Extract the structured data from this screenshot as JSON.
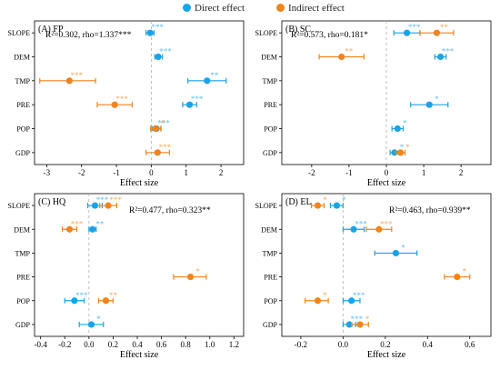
{
  "legend": {
    "direct": "Direct effect",
    "indirect": "Indirect effect"
  },
  "colors": {
    "direct": "#1aa3e8",
    "indirect": "#f2841d",
    "zero_line": "#b0b0b0",
    "axis": "#000000"
  },
  "chart_data": [
    {
      "type": "scatter",
      "title": "(A) FP",
      "annotation": "R²=0.302, rho=1.337***",
      "xlabel": "Effect size",
      "xlim": [
        -3.35,
        2.65
      ],
      "xticks": [
        -3,
        -2,
        -1,
        0,
        1,
        2
      ],
      "xtick_labels": [
        "-3",
        "-2",
        "-1",
        "0",
        "1",
        "2"
      ],
      "categories": [
        "SLOPE",
        "DEM",
        "TMP",
        "PRE",
        "POP",
        "GDP"
      ],
      "series": [
        {
          "name": "Direct effect",
          "points": [
            {
              "category": "SLOPE",
              "value": -0.03,
              "lo": -0.15,
              "hi": 0.08,
              "sig": "***"
            },
            {
              "category": "DEM",
              "value": 0.2,
              "lo": 0.1,
              "hi": 0.32,
              "sig": "***"
            },
            {
              "category": "TMP",
              "value": 1.6,
              "lo": 1.05,
              "hi": 2.15,
              "sig": "**"
            },
            {
              "category": "PRE",
              "value": 1.1,
              "lo": 0.9,
              "hi": 1.3,
              "sig": "***"
            },
            {
              "category": "POP",
              "value": 0.15,
              "lo": 0.02,
              "hi": 0.28,
              "sig": "***"
            },
            {
              "category": "GDP",
              "value": null,
              "lo": null,
              "hi": null,
              "sig": ""
            }
          ]
        },
        {
          "name": "Indirect effect",
          "points": [
            {
              "category": "SLOPE",
              "value": null,
              "lo": null,
              "hi": null,
              "sig": ""
            },
            {
              "category": "DEM",
              "value": null,
              "lo": null,
              "hi": null,
              "sig": ""
            },
            {
              "category": "TMP",
              "value": -2.35,
              "lo": -3.2,
              "hi": -1.6,
              "sig": "***"
            },
            {
              "category": "PRE",
              "value": -1.05,
              "lo": -1.55,
              "hi": -0.55,
              "sig": "***"
            },
            {
              "category": "POP",
              "value": 0.12,
              "lo": -0.02,
              "hi": 0.27,
              "sig": "*"
            },
            {
              "category": "GDP",
              "value": 0.18,
              "lo": -0.15,
              "hi": 0.52,
              "sig": "***"
            }
          ]
        }
      ]
    },
    {
      "type": "scatter",
      "title": "(B) SC",
      "annotation": "R²=0.573, rho=0.181*",
      "xlabel": "Effect size",
      "xlim": [
        -2.8,
        2.8
      ],
      "xticks": [
        -2,
        -1,
        0,
        1,
        2
      ],
      "xtick_labels": [
        "-2",
        "-1",
        "0",
        "1",
        "2"
      ],
      "categories": [
        "SLOPE",
        "DEM",
        "TMP",
        "PRE",
        "POP",
        "GDP"
      ],
      "series": [
        {
          "name": "Direct effect",
          "points": [
            {
              "category": "SLOPE",
              "value": 0.55,
              "lo": 0.2,
              "hi": 0.9,
              "sig": "***"
            },
            {
              "category": "DEM",
              "value": 1.45,
              "lo": 1.3,
              "hi": 1.6,
              "sig": "***"
            },
            {
              "category": "TMP",
              "value": null,
              "lo": null,
              "hi": null,
              "sig": ""
            },
            {
              "category": "PRE",
              "value": 1.15,
              "lo": 0.65,
              "hi": 1.65,
              "sig": "*"
            },
            {
              "category": "POP",
              "value": 0.3,
              "lo": 0.15,
              "hi": 0.45,
              "sig": "*"
            },
            {
              "category": "GDP",
              "value": 0.22,
              "lo": 0.1,
              "hi": 0.34,
              "sig": "*"
            }
          ]
        },
        {
          "name": "Indirect effect",
          "points": [
            {
              "category": "SLOPE",
              "value": 1.35,
              "lo": 0.9,
              "hi": 1.8,
              "sig": "**"
            },
            {
              "category": "DEM",
              "value": -1.2,
              "lo": -1.8,
              "hi": -0.6,
              "sig": "**"
            },
            {
              "category": "TMP",
              "value": null,
              "lo": null,
              "hi": null,
              "sig": ""
            },
            {
              "category": "PRE",
              "value": null,
              "lo": null,
              "hi": null,
              "sig": ""
            },
            {
              "category": "POP",
              "value": null,
              "lo": null,
              "hi": null,
              "sig": ""
            },
            {
              "category": "GDP",
              "value": 0.38,
              "lo": 0.25,
              "hi": 0.5,
              "sig": "*"
            }
          ]
        }
      ]
    },
    {
      "type": "scatter",
      "title": "(C) HQ",
      "annotation": "R²=0.477, rho=0.323**",
      "xlabel": "Effect size",
      "xlim": [
        -0.45,
        1.28
      ],
      "xticks": [
        -0.4,
        -0.2,
        0.0,
        0.2,
        0.4,
        0.6,
        0.8,
        1.0,
        1.2
      ],
      "xtick_labels": [
        "-0.4",
        "-0.2",
        "0.0",
        "0.2",
        "0.4",
        "0.6",
        "0.8",
        "1.0",
        "1.2"
      ],
      "categories": [
        "SLOPE",
        "DEM",
        "TMP",
        "PRE",
        "POP",
        "GDP"
      ],
      "series": [
        {
          "name": "Direct effect",
          "points": [
            {
              "category": "SLOPE",
              "value": 0.05,
              "lo": -0.01,
              "hi": 0.11,
              "sig": "***"
            },
            {
              "category": "DEM",
              "value": 0.03,
              "lo": 0.0,
              "hi": 0.06,
              "sig": "**"
            },
            {
              "category": "TMP",
              "value": null,
              "lo": null,
              "hi": null,
              "sig": ""
            },
            {
              "category": "PRE",
              "value": null,
              "lo": null,
              "hi": null,
              "sig": ""
            },
            {
              "category": "POP",
              "value": -0.12,
              "lo": -0.2,
              "hi": -0.04,
              "sig": "***"
            },
            {
              "category": "GDP",
              "value": 0.02,
              "lo": -0.08,
              "hi": 0.12,
              "sig": "*"
            }
          ]
        },
        {
          "name": "Indirect effect",
          "points": [
            {
              "category": "SLOPE",
              "value": 0.16,
              "lo": 0.09,
              "hi": 0.23,
              "sig": "***"
            },
            {
              "category": "DEM",
              "value": -0.16,
              "lo": -0.22,
              "hi": -0.1,
              "sig": "***"
            },
            {
              "category": "TMP",
              "value": null,
              "lo": null,
              "hi": null,
              "sig": ""
            },
            {
              "category": "PRE",
              "value": 0.84,
              "lo": 0.7,
              "hi": 0.97,
              "sig": "*"
            },
            {
              "category": "POP",
              "value": 0.14,
              "lo": 0.08,
              "hi": 0.2,
              "sig": "**"
            },
            {
              "category": "GDP",
              "value": null,
              "lo": null,
              "hi": null,
              "sig": ""
            }
          ]
        }
      ]
    },
    {
      "type": "scatter",
      "title": "(D) EL",
      "annotation": "R²=0.463, rho=0.939**",
      "xlabel": "Effect size",
      "xlim": [
        -0.29,
        0.7
      ],
      "xticks": [
        -0.2,
        0.0,
        0.2,
        0.4,
        0.6
      ],
      "xtick_labels": [
        "-0.2",
        "0.0",
        "0.2",
        "0.4",
        "0.6"
      ],
      "categories": [
        "SLOPE",
        "DEM",
        "TMP",
        "PRE",
        "POP",
        "GDP"
      ],
      "series": [
        {
          "name": "Direct effect",
          "points": [
            {
              "category": "SLOPE",
              "value": -0.03,
              "lo": -0.06,
              "hi": 0.0,
              "sig": "*"
            },
            {
              "category": "DEM",
              "value": 0.05,
              "lo": 0.0,
              "hi": 0.1,
              "sig": "***"
            },
            {
              "category": "TMP",
              "value": 0.25,
              "lo": 0.15,
              "hi": 0.35,
              "sig": "*"
            },
            {
              "category": "PRE",
              "value": null,
              "lo": null,
              "hi": null,
              "sig": ""
            },
            {
              "category": "POP",
              "value": 0.04,
              "lo": 0.0,
              "hi": 0.08,
              "sig": "***"
            },
            {
              "category": "GDP",
              "value": 0.03,
              "lo": 0.0,
              "hi": 0.06,
              "sig": "***"
            }
          ]
        },
        {
          "name": "Indirect effect",
          "points": [
            {
              "category": "SLOPE",
              "value": -0.12,
              "lo": -0.15,
              "hi": -0.09,
              "sig": "*"
            },
            {
              "category": "DEM",
              "value": 0.17,
              "lo": 0.11,
              "hi": 0.23,
              "sig": "***"
            },
            {
              "category": "TMP",
              "value": null,
              "lo": null,
              "hi": null,
              "sig": ""
            },
            {
              "category": "PRE",
              "value": 0.54,
              "lo": 0.48,
              "hi": 0.6,
              "sig": "*"
            },
            {
              "category": "POP",
              "value": -0.12,
              "lo": -0.18,
              "hi": -0.07,
              "sig": "*"
            },
            {
              "category": "GDP",
              "value": 0.08,
              "lo": 0.04,
              "hi": 0.12,
              "sig": "*"
            }
          ]
        }
      ]
    }
  ]
}
